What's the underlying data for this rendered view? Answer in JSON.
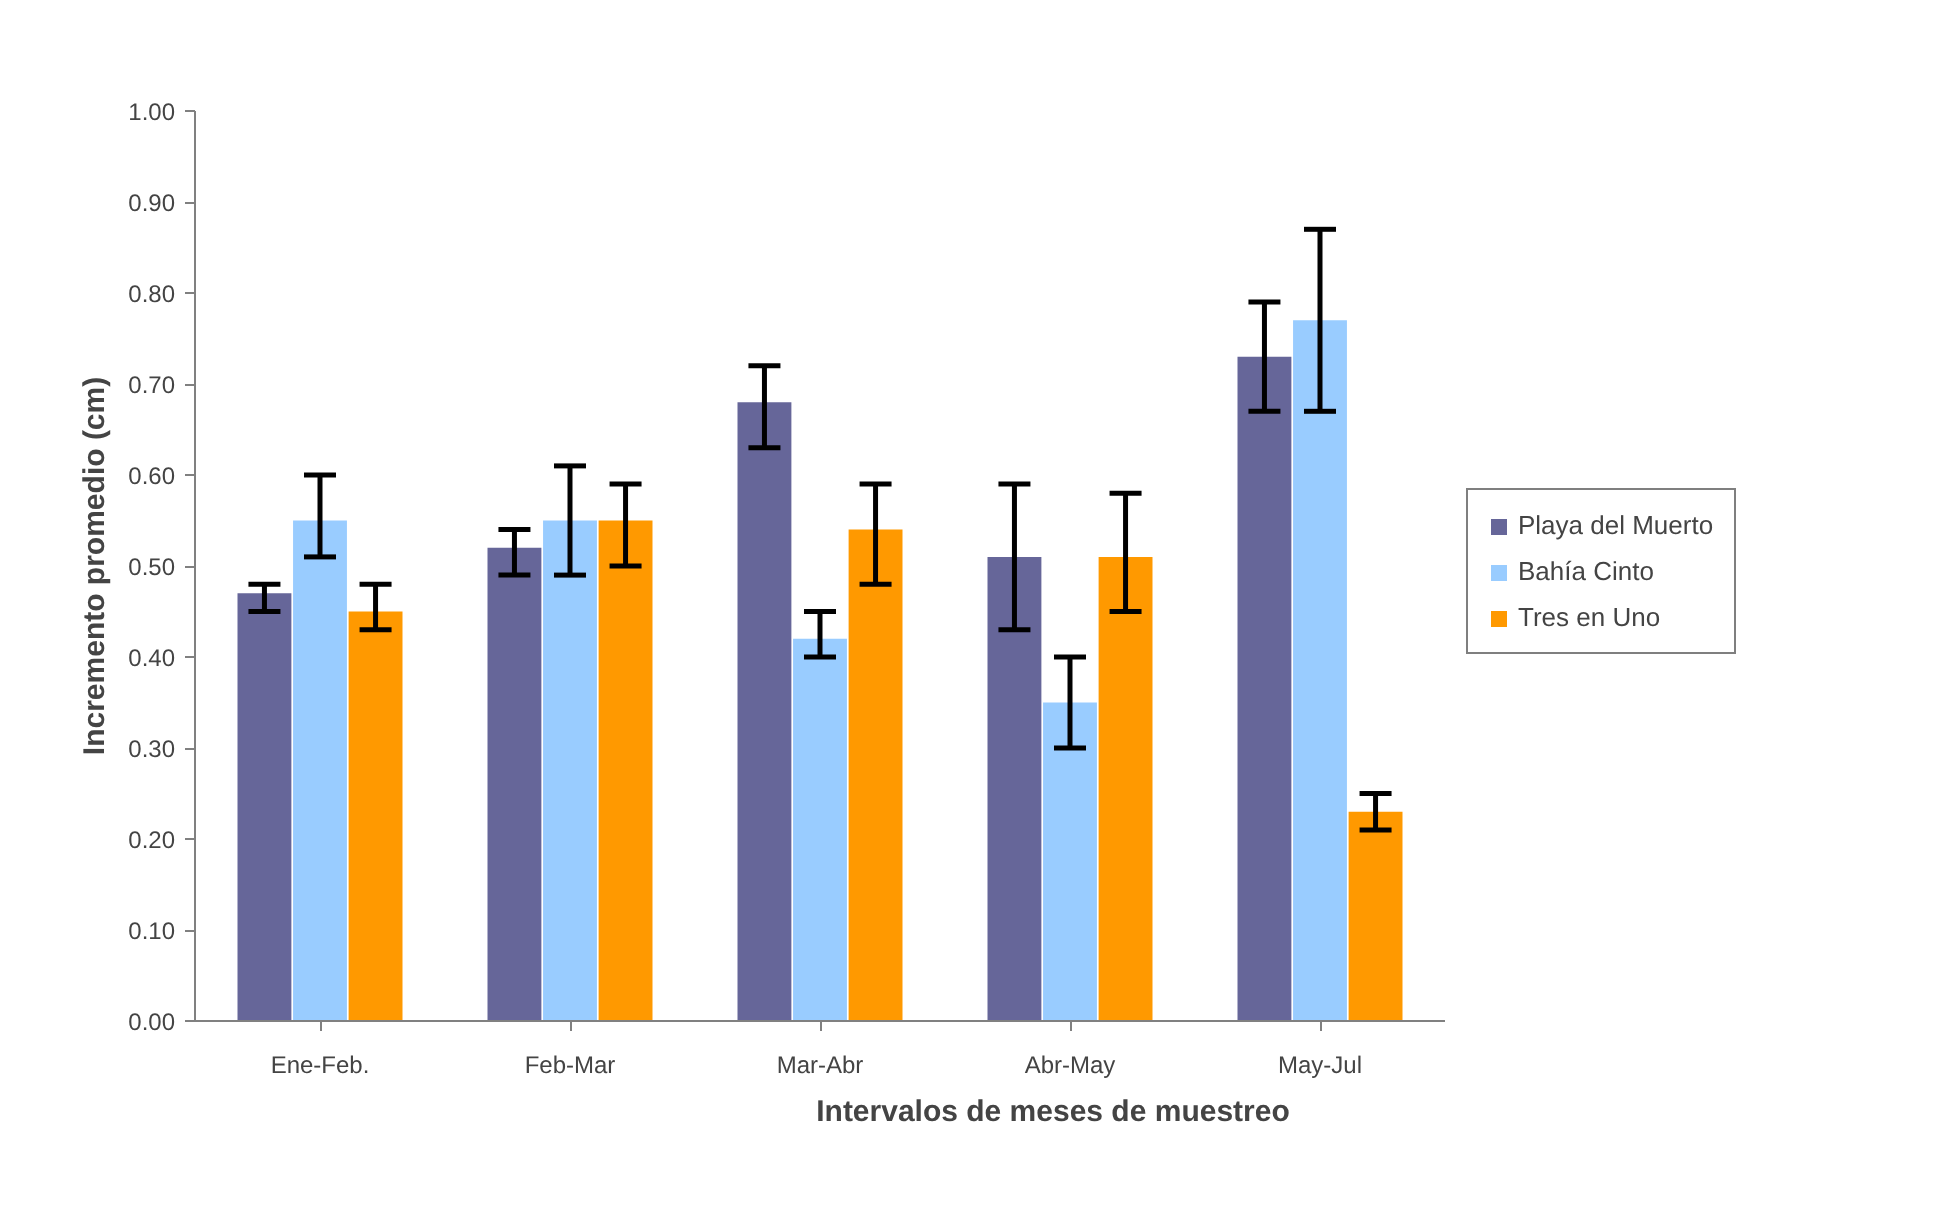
{
  "chart_data": {
    "type": "bar",
    "xlabel": "Intervalos de meses de muestreo",
    "ylabel": "Incremento promedio (cm)",
    "categories": [
      "Ene-Feb.",
      "Feb-Mar",
      "Mar-Abr",
      "Abr-May",
      "May-Jul"
    ],
    "series": [
      {
        "name": "Playa del Muerto",
        "color": "#666699",
        "values": [
          0.47,
          0.52,
          0.68,
          0.51,
          0.73
        ],
        "errors": [
          [
            0.45,
            0.48
          ],
          [
            0.49,
            0.54
          ],
          [
            0.63,
            0.72
          ],
          [
            0.43,
            0.59
          ],
          [
            0.67,
            0.79
          ]
        ]
      },
      {
        "name": "Bahía Cinto",
        "color": "#99ccff",
        "values": [
          0.55,
          0.55,
          0.42,
          0.35,
          0.77
        ],
        "errors": [
          [
            0.51,
            0.6
          ],
          [
            0.49,
            0.61
          ],
          [
            0.4,
            0.45
          ],
          [
            0.3,
            0.4
          ],
          [
            0.67,
            0.87
          ]
        ]
      },
      {
        "name": "Tres en Uno",
        "color": "#ff9900",
        "values": [
          0.45,
          0.55,
          0.54,
          0.51,
          0.23
        ],
        "errors": [
          [
            0.43,
            0.48
          ],
          [
            0.5,
            0.59
          ],
          [
            0.48,
            0.59
          ],
          [
            0.45,
            0.58
          ],
          [
            0.21,
            0.25
          ]
        ]
      }
    ],
    "ylim": [
      0,
      1
    ],
    "yticks": [
      {
        "value": 0,
        "label": "0.00"
      },
      {
        "value": 0.1,
        "label": "0.10"
      },
      {
        "value": 0.2,
        "label": "0.20"
      },
      {
        "value": 0.3,
        "label": "0.30"
      },
      {
        "value": 0.4,
        "label": "0.40"
      },
      {
        "value": 0.5,
        "label": "0.50"
      },
      {
        "value": 0.6,
        "label": "0.60"
      },
      {
        "value": 0.7,
        "label": "0.70"
      },
      {
        "value": 0.8,
        "label": "0.80"
      },
      {
        "value": 0.9,
        "label": "0.90"
      },
      {
        "value": 1,
        "label": "1.00"
      }
    ],
    "grid": false,
    "legend": "right"
  }
}
